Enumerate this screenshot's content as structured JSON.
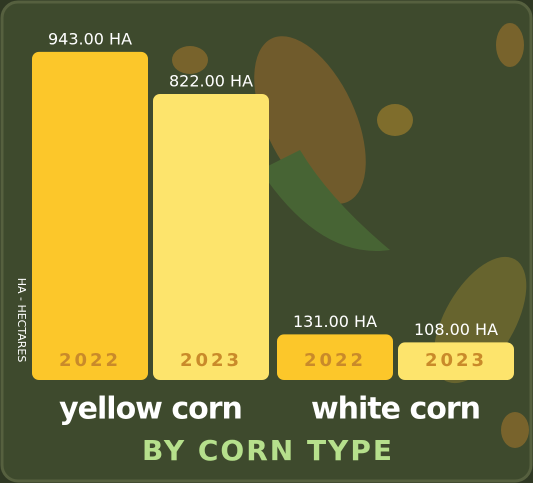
{
  "chart_data": {
    "type": "bar",
    "title": "BY CORN TYPE",
    "ylabel": "HA - HECTARES",
    "categories": [
      "yellow corn",
      "white corn"
    ],
    "series": [
      {
        "name": "2022",
        "color": "#fcc72a",
        "values": [
          943,
          131
        ],
        "value_labels": [
          "943.00 HA",
          "131.00 HA"
        ]
      },
      {
        "name": "2023",
        "color": "#fde46c",
        "values": [
          822,
          108
        ],
        "value_labels": [
          "822.00 HA",
          "108.00 HA"
        ]
      }
    ],
    "ylim": [
      0,
      1000
    ]
  }
}
